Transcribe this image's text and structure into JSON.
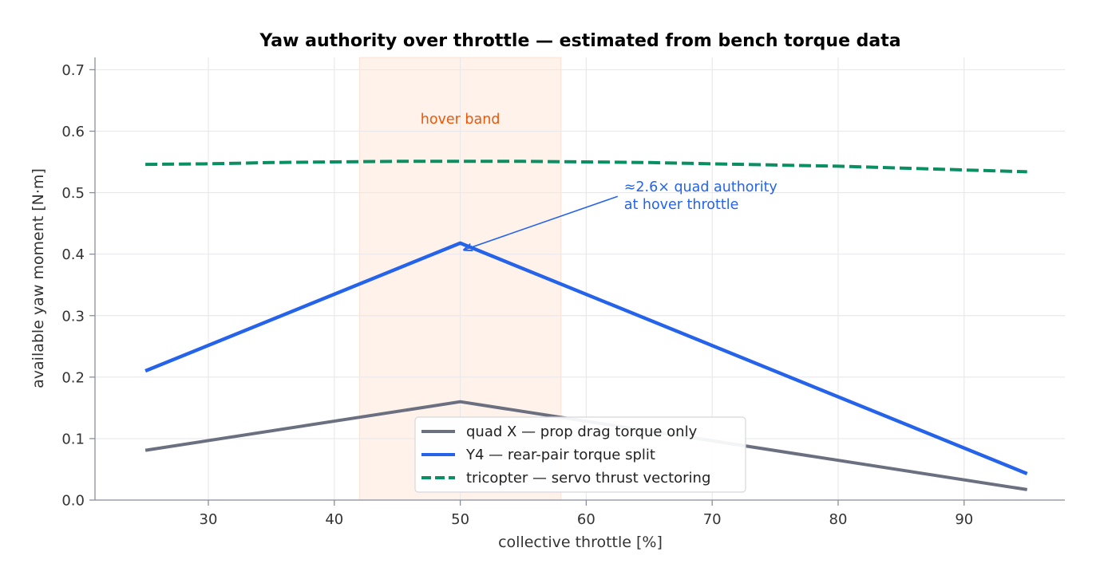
{
  "chart_data": {
    "type": "line",
    "title": "Yaw authority over throttle — estimated from bench torque data",
    "xlabel": "collective throttle [%]",
    "ylabel": "available yaw moment [N·m]",
    "xlim": [
      21,
      98
    ],
    "ylim": [
      0,
      0.72
    ],
    "xticks": [
      30,
      40,
      50,
      60,
      70,
      80,
      90
    ],
    "yticks": [
      0.0,
      0.1,
      0.2,
      0.3,
      0.4,
      0.5,
      0.6,
      0.7
    ],
    "xtick_labels": [
      "30",
      "40",
      "50",
      "60",
      "70",
      "80",
      "90"
    ],
    "ytick_labels": [
      "0.0",
      "0.1",
      "0.2",
      "0.3",
      "0.4",
      "0.5",
      "0.6",
      "0.7"
    ],
    "grid": true,
    "legend_position": "lower center",
    "shaded_region": {
      "x": [
        42,
        58
      ],
      "label": "hover band",
      "color": "#f26b1d",
      "label_color": "#e8590c"
    },
    "series": [
      {
        "name": "quad X — prop drag torque only",
        "color": "#6b7080",
        "style": "solid",
        "x": [
          25,
          50,
          95
        ],
        "y": [
          0.081,
          0.16,
          0.017
        ]
      },
      {
        "name": "Y4 — rear-pair torque split",
        "color": "#2563eb",
        "style": "solid",
        "x": [
          25,
          50,
          95
        ],
        "y": [
          0.21,
          0.418,
          0.043
        ]
      },
      {
        "name": "tricopter — servo thrust vectoring",
        "color": "#0a8f63",
        "style": "dashed",
        "x": [
          25,
          30,
          35,
          40,
          45,
          50,
          55,
          60,
          65,
          70,
          75,
          80,
          85,
          90,
          95
        ],
        "y": [
          0.546,
          0.547,
          0.549,
          0.55,
          0.551,
          0.551,
          0.551,
          0.55,
          0.549,
          0.547,
          0.545,
          0.543,
          0.54,
          0.537,
          0.534
        ]
      }
    ],
    "annotations": [
      {
        "lines": [
          "≈2.6× quad authority",
          "at hover throttle"
        ],
        "color": "#2563eb",
        "target": {
          "x": 50.3,
          "y": 0.407
        },
        "text_at": {
          "x": 63,
          "y": 0.481
        }
      }
    ]
  }
}
